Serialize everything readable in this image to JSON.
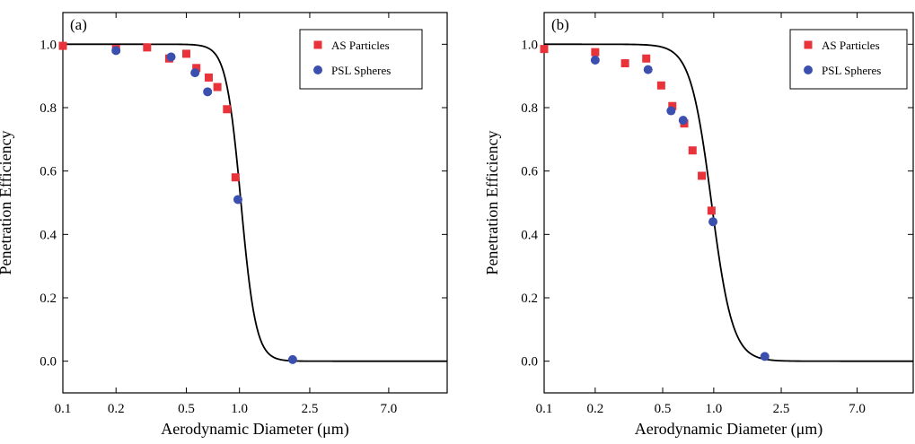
{
  "chart_data": [
    {
      "type": "scatter",
      "panel_label": "(a)",
      "xlabel": "Aerodynamic Diameter (μm)",
      "ylabel": "Penetration Efficiency",
      "x_scale": "log",
      "x_ticks": [
        0.1,
        0.2,
        0.5,
        1.0,
        2.5,
        7.0
      ],
      "x_tick_labels": [
        "0.1",
        "0.2",
        "0.5",
        "1.0",
        "2.5",
        "7.0"
      ],
      "y_ticks": [
        0.0,
        0.2,
        0.4,
        0.6,
        0.8,
        1.0
      ],
      "y_tick_labels": [
        "0.0",
        "0.2",
        "0.4",
        "0.6",
        "0.8",
        "1.0"
      ],
      "xlim": [
        0.1,
        15
      ],
      "ylim": [
        -0.1,
        1.1
      ],
      "grid": false,
      "legend_placement": "top-right",
      "series": [
        {
          "name": "AS Particles",
          "marker": "square",
          "color": "#e8333a",
          "points": [
            [
              0.1,
              0.995
            ],
            [
              0.2,
              0.985
            ],
            [
              0.3,
              0.99
            ],
            [
              0.4,
              0.955
            ],
            [
              0.5,
              0.97
            ],
            [
              0.57,
              0.925
            ],
            [
              0.67,
              0.895
            ],
            [
              0.75,
              0.865
            ],
            [
              0.85,
              0.795
            ],
            [
              0.95,
              0.58
            ]
          ]
        },
        {
          "name": "PSL Spheres",
          "marker": "circle",
          "color": "#3a4fae",
          "points": [
            [
              0.2,
              0.98
            ],
            [
              0.41,
              0.96
            ],
            [
              0.56,
              0.91
            ],
            [
              0.66,
              0.85
            ],
            [
              0.98,
              0.51
            ],
            [
              2.0,
              0.005
            ]
          ]
        }
      ],
      "fit_curve": {
        "color": "#000000",
        "d50": 1.02,
        "steepness": 10.3
      }
    },
    {
      "type": "scatter",
      "panel_label": "(b)",
      "xlabel": "Aerodynamic Diameter (μm)",
      "ylabel": "Penetration Efficiency",
      "x_scale": "log",
      "x_ticks": [
        0.1,
        0.2,
        0.5,
        1.0,
        2.5,
        7.0
      ],
      "x_tick_labels": [
        "0.1",
        "0.2",
        "0.5",
        "1.0",
        "2.5",
        "7.0"
      ],
      "y_ticks": [
        0.0,
        0.2,
        0.4,
        0.6,
        0.8,
        1.0
      ],
      "y_tick_labels": [
        "0.0",
        "0.2",
        "0.4",
        "0.6",
        "0.8",
        "1.0"
      ],
      "xlim": [
        0.1,
        15
      ],
      "ylim": [
        -0.1,
        1.1
      ],
      "grid": false,
      "legend_placement": "top-right",
      "series": [
        {
          "name": "AS Particles",
          "marker": "square",
          "color": "#e8333a",
          "points": [
            [
              0.1,
              0.985
            ],
            [
              0.2,
              0.975
            ],
            [
              0.3,
              0.94
            ],
            [
              0.4,
              0.955
            ],
            [
              0.49,
              0.87
            ],
            [
              0.57,
              0.805
            ],
            [
              0.67,
              0.75
            ],
            [
              0.75,
              0.665
            ],
            [
              0.85,
              0.585
            ],
            [
              0.97,
              0.475
            ]
          ]
        },
        {
          "name": "PSL Spheres",
          "marker": "circle",
          "color": "#3a4fae",
          "points": [
            [
              0.2,
              0.95
            ],
            [
              0.41,
              0.92
            ],
            [
              0.56,
              0.79
            ],
            [
              0.66,
              0.76
            ],
            [
              0.99,
              0.44
            ],
            [
              2.0,
              0.015
            ]
          ]
        }
      ],
      "fit_curve": {
        "color": "#000000",
        "d50": 0.97,
        "steepness": 7.0
      }
    }
  ]
}
